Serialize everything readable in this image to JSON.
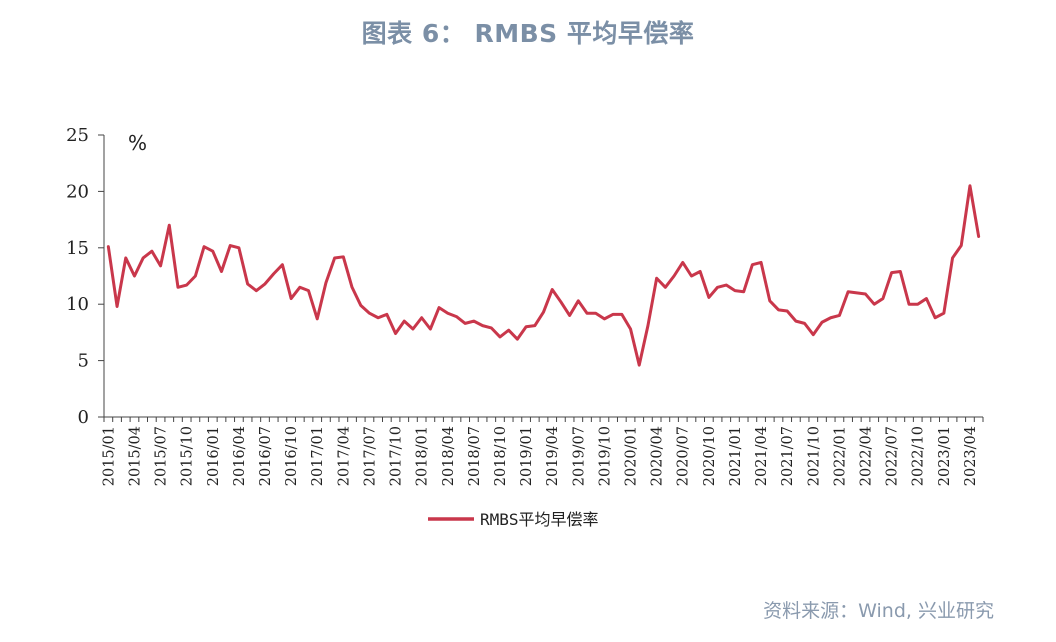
{
  "title": "图表 6： RMBS 平均早偿率",
  "source": "资料来源：Wind, 兴业研究",
  "chart_data": {
    "type": "line",
    "title": "图表 6： RMBS 平均早偿率",
    "unit_label": "%",
    "ylim": [
      0,
      25
    ],
    "yticks": [
      0,
      5,
      10,
      15,
      20,
      25
    ],
    "xtick_labels": [
      "2015/01",
      "2015/04",
      "2015/07",
      "2015/10",
      "2016/01",
      "2016/04",
      "2016/07",
      "2016/10",
      "2017/01",
      "2017/04",
      "2017/07",
      "2017/10",
      "2018/01",
      "2018/04",
      "2018/07",
      "2018/10",
      "2019/01",
      "2019/04",
      "2019/07",
      "2019/10",
      "2020/01",
      "2020/04",
      "2020/07",
      "2020/10",
      "2021/01",
      "2021/04",
      "2021/07",
      "2021/10",
      "2022/01",
      "2022/04",
      "2022/07",
      "2022/10",
      "2023/01",
      "2023/04"
    ],
    "x_start": "2015/01",
    "x_end": "2023/05",
    "legend": "bottom-center",
    "grid": false,
    "series": [
      {
        "name": "RMBS平均早偿率",
        "color": "#c9374b",
        "values": [
          15.1,
          9.8,
          14.1,
          12.5,
          14.1,
          14.7,
          13.4,
          17.0,
          11.5,
          11.7,
          12.5,
          15.1,
          14.7,
          12.9,
          15.2,
          15.0,
          11.8,
          11.2,
          11.8,
          12.7,
          13.5,
          10.5,
          11.5,
          11.2,
          8.7,
          11.9,
          14.1,
          14.2,
          11.5,
          9.9,
          9.2,
          8.8,
          9.1,
          7.4,
          8.5,
          7.8,
          8.8,
          7.8,
          9.7,
          9.2,
          8.9,
          8.3,
          8.5,
          8.1,
          7.9,
          7.1,
          7.7,
          6.9,
          8.0,
          8.1,
          9.3,
          11.3,
          10.2,
          9.0,
          10.3,
          9.2,
          9.2,
          8.7,
          9.1,
          9.1,
          7.8,
          4.6,
          8.1,
          12.3,
          11.5,
          12.5,
          13.7,
          12.5,
          12.9,
          10.6,
          11.5,
          11.7,
          11.2,
          11.1,
          13.5,
          13.7,
          10.3,
          9.5,
          9.4,
          8.5,
          8.3,
          7.3,
          8.4,
          8.8,
          9.0,
          11.1,
          11.0,
          10.9,
          10.0,
          10.5,
          12.8,
          12.9,
          10.0,
          10.0,
          10.5,
          8.8,
          9.2,
          14.1,
          15.2,
          20.5,
          16.0
        ]
      }
    ]
  }
}
